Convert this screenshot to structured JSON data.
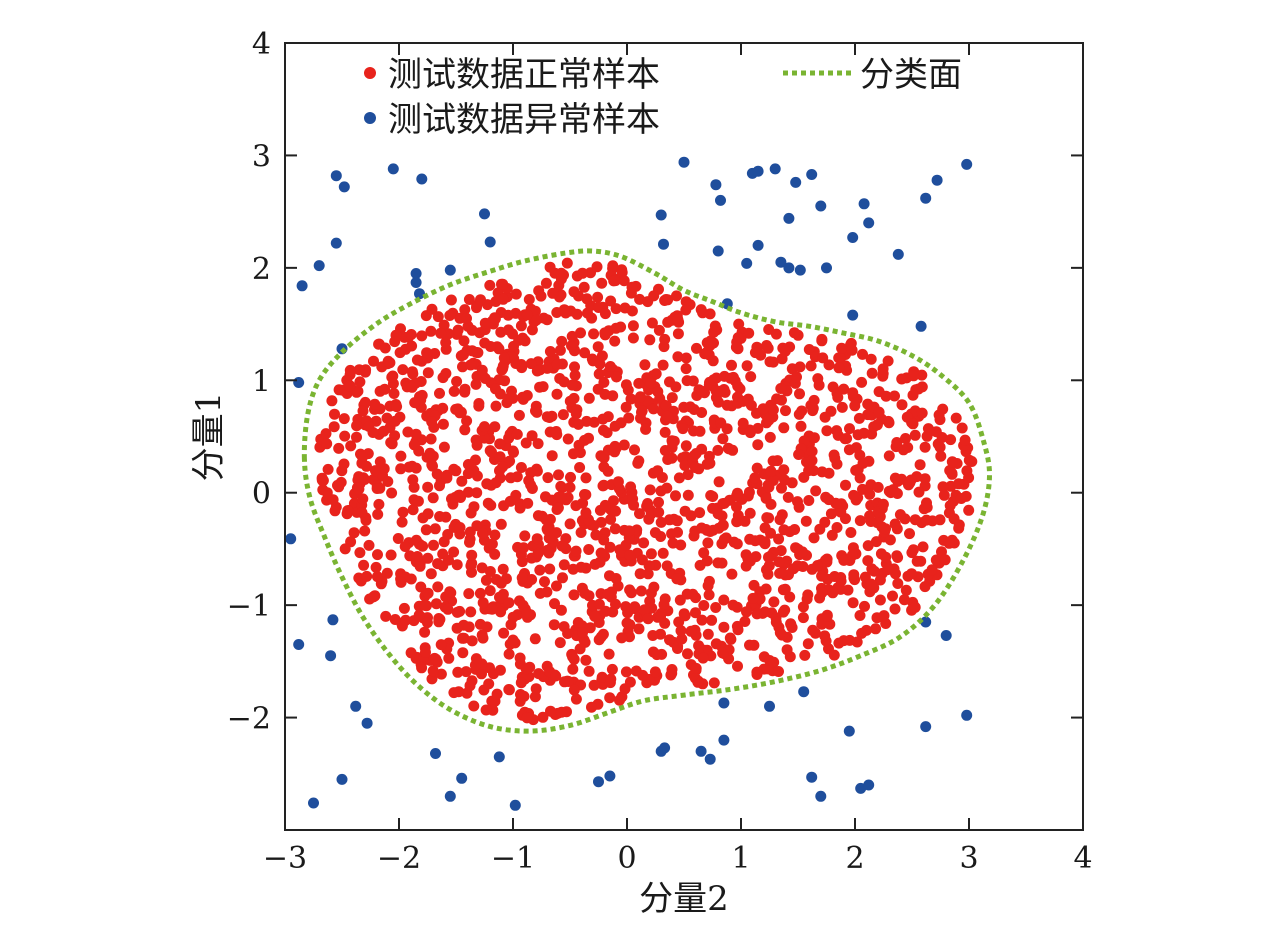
{
  "chart_data": {
    "type": "scatter",
    "xlabel": "分量2",
    "ylabel": "分量1",
    "xlim": [
      -3,
      4
    ],
    "ylim": [
      -3,
      4
    ],
    "xticks": [
      "−3",
      "−2",
      "−1",
      "0",
      "1",
      "2",
      "3",
      "4"
    ],
    "yticks": [
      "−2",
      "−1",
      "0",
      "1",
      "2",
      "3",
      "4"
    ],
    "grid": false,
    "legend": {
      "placement": "top",
      "entries": [
        {
          "label": "测试数据正常样本",
          "color": "#e8231c",
          "marker": "dot"
        },
        {
          "label": "测试数据异常样本",
          "color": "#1f4e9c",
          "marker": "dot"
        },
        {
          "label": "分类面",
          "color": "#7ab432",
          "marker": "dotted-line"
        }
      ]
    },
    "boundary": {
      "name": "分类面",
      "color": "#7ab432",
      "points": [
        [
          -2.83,
          0.3
        ],
        [
          -2.8,
          0.7
        ],
        [
          -2.7,
          1.0
        ],
        [
          -2.5,
          1.25
        ],
        [
          -2.2,
          1.5
        ],
        [
          -1.9,
          1.68
        ],
        [
          -1.55,
          1.85
        ],
        [
          -1.2,
          1.97
        ],
        [
          -0.9,
          2.06
        ],
        [
          -0.55,
          2.13
        ],
        [
          -0.3,
          2.15
        ],
        [
          -0.05,
          2.1
        ],
        [
          0.25,
          1.95
        ],
        [
          0.5,
          1.8
        ],
        [
          0.75,
          1.7
        ],
        [
          1.0,
          1.6
        ],
        [
          1.3,
          1.52
        ],
        [
          1.6,
          1.48
        ],
        [
          1.9,
          1.42
        ],
        [
          2.2,
          1.35
        ],
        [
          2.5,
          1.22
        ],
        [
          2.75,
          1.05
        ],
        [
          3.0,
          0.8
        ],
        [
          3.13,
          0.45
        ],
        [
          3.18,
          0.15
        ],
        [
          3.12,
          -0.2
        ],
        [
          2.95,
          -0.6
        ],
        [
          2.7,
          -1.0
        ],
        [
          2.4,
          -1.28
        ],
        [
          2.05,
          -1.45
        ],
        [
          1.7,
          -1.58
        ],
        [
          1.3,
          -1.68
        ],
        [
          0.9,
          -1.75
        ],
        [
          0.5,
          -1.8
        ],
        [
          0.15,
          -1.85
        ],
        [
          -0.15,
          -1.95
        ],
        [
          -0.5,
          -2.07
        ],
        [
          -0.85,
          -2.12
        ],
        [
          -1.2,
          -2.08
        ],
        [
          -1.55,
          -1.93
        ],
        [
          -1.85,
          -1.7
        ],
        [
          -2.1,
          -1.42
        ],
        [
          -2.32,
          -1.1
        ],
        [
          -2.5,
          -0.75
        ],
        [
          -2.65,
          -0.4
        ],
        [
          -2.78,
          -0.05
        ],
        [
          -2.83,
          0.3
        ]
      ]
    },
    "series": [
      {
        "name": "测试数据正常样本",
        "color": "#e8231c",
        "marker": "dot",
        "density": "uniform fill of the region enclosed by 分类面",
        "count_approx": 1800
      },
      {
        "name": "测试数据异常样本",
        "color": "#1f4e9c",
        "marker": "dot",
        "points": [
          [
            -2.55,
            2.82
          ],
          [
            -2.48,
            2.72
          ],
          [
            -2.05,
            2.88
          ],
          [
            -1.8,
            2.79
          ],
          [
            -1.25,
            2.48
          ],
          [
            -1.2,
            2.23
          ],
          [
            -2.85,
            1.84
          ],
          [
            -2.7,
            2.02
          ],
          [
            -2.55,
            2.22
          ],
          [
            -1.85,
            1.95
          ],
          [
            -1.85,
            1.87
          ],
          [
            -1.82,
            1.77
          ],
          [
            -1.55,
            1.98
          ],
          [
            -2.5,
            1.28
          ],
          [
            -2.88,
            0.98
          ],
          [
            -2.95,
            -0.41
          ],
          [
            -2.58,
            -1.13
          ],
          [
            -2.88,
            -1.35
          ],
          [
            -2.6,
            -1.45
          ],
          [
            -2.38,
            -1.9
          ],
          [
            -2.28,
            -2.05
          ],
          [
            -2.5,
            -2.55
          ],
          [
            -2.75,
            -2.76
          ],
          [
            -1.68,
            -2.32
          ],
          [
            -1.55,
            -2.7
          ],
          [
            -1.45,
            -2.54
          ],
          [
            -1.12,
            -2.35
          ],
          [
            -0.98,
            -2.78
          ],
          [
            -0.25,
            -2.57
          ],
          [
            -0.15,
            -2.52
          ],
          [
            0.3,
            -2.3
          ],
          [
            0.33,
            -2.27
          ],
          [
            0.65,
            -2.3
          ],
          [
            0.73,
            -2.37
          ],
          [
            0.85,
            -2.2
          ],
          [
            0.85,
            -1.87
          ],
          [
            1.25,
            -1.9
          ],
          [
            1.55,
            -1.77
          ],
          [
            1.62,
            -2.53
          ],
          [
            1.7,
            -2.7
          ],
          [
            1.95,
            -2.12
          ],
          [
            2.05,
            -2.63
          ],
          [
            2.12,
            -2.6
          ],
          [
            2.62,
            -2.08
          ],
          [
            2.98,
            -1.98
          ],
          [
            2.62,
            -1.15
          ],
          [
            2.8,
            -1.27
          ],
          [
            0.5,
            2.94
          ],
          [
            0.78,
            2.74
          ],
          [
            0.82,
            2.6
          ],
          [
            1.1,
            2.84
          ],
          [
            1.15,
            2.86
          ],
          [
            1.3,
            2.88
          ],
          [
            1.48,
            2.76
          ],
          [
            1.62,
            2.83
          ],
          [
            1.42,
            2.44
          ],
          [
            1.7,
            2.55
          ],
          [
            1.15,
            2.2
          ],
          [
            0.8,
            2.15
          ],
          [
            1.05,
            2.04
          ],
          [
            1.35,
            2.05
          ],
          [
            1.42,
            2.0
          ],
          [
            1.52,
            1.98
          ],
          [
            1.75,
            2.0
          ],
          [
            0.3,
            2.47
          ],
          [
            0.32,
            2.21
          ],
          [
            0.88,
            1.68
          ],
          [
            2.08,
            2.57
          ],
          [
            2.12,
            2.4
          ],
          [
            1.98,
            2.27
          ],
          [
            2.38,
            2.12
          ],
          [
            2.62,
            2.62
          ],
          [
            2.72,
            2.78
          ],
          [
            2.98,
            2.92
          ],
          [
            1.98,
            1.58
          ],
          [
            2.58,
            1.48
          ]
        ]
      }
    ]
  }
}
